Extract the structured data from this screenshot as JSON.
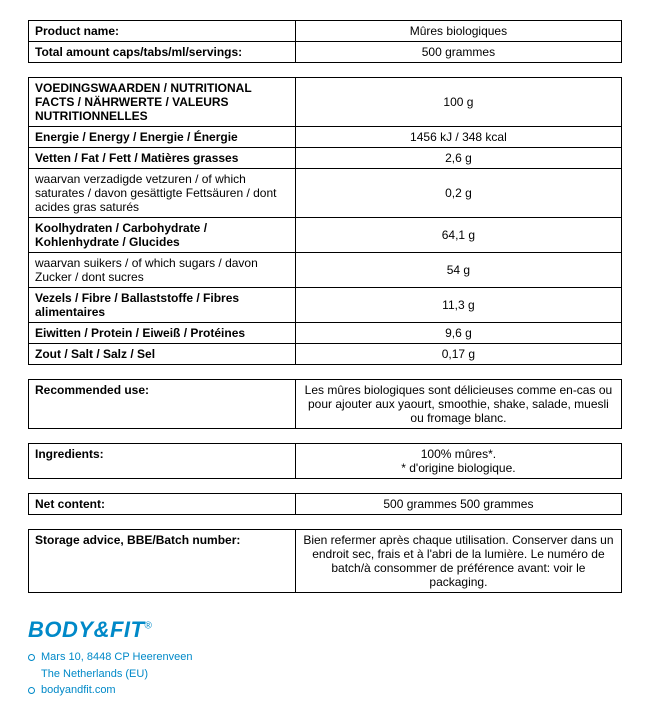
{
  "product_table": {
    "rows": [
      {
        "label": "Product name:",
        "value": "Mûres biologiques",
        "bold": true
      },
      {
        "label": "Total amount caps/tabs/ml/servings:",
        "value": "500 grammes",
        "bold": true
      }
    ]
  },
  "nutrition_table": {
    "rows": [
      {
        "label": "VOEDINGSWAARDEN / NUTRITIONAL FACTS / NÄHRWERTE / VALEURS NUTRITIONNELLES",
        "value": "100 g",
        "bold": true
      },
      {
        "label": "Energie / Energy / Energie / Énergie",
        "value": "1456 kJ / 348 kcal",
        "bold": true
      },
      {
        "label": "Vetten / Fat / Fett / Matières grasses",
        "value": "2,6 g",
        "bold": true
      },
      {
        "label": "waarvan verzadigde vetzuren / of which saturates / davon gesättigte Fettsäuren / dont acides gras saturés",
        "value": "0,2 g",
        "bold": false
      },
      {
        "label": "Koolhydraten / Carbohydrate / Kohlenhydrate / Glucides",
        "value": "64,1 g",
        "bold": true
      },
      {
        "label": "waarvan suikers / of which sugars / davon Zucker / dont sucres",
        "value": "54 g",
        "bold": false
      },
      {
        "label": "Vezels / Fibre / Ballaststoffe / Fibres alimentaires",
        "value": "11,3 g",
        "bold": true
      },
      {
        "label": "Eiwitten / Protein / Eiweiß / Protéines",
        "value": "9,6 g",
        "bold": true
      },
      {
        "label": "Zout / Salt / Salz / Sel",
        "value": "0,17 g",
        "bold": true
      }
    ]
  },
  "recommended_use": {
    "label": "Recommended use:",
    "value": "Les mûres biologiques sont délicieuses comme en-cas ou pour ajouter aux yaourt, smoothie, shake, salade, muesli ou fromage blanc."
  },
  "ingredients": {
    "label": "Ingredients:",
    "value": "100% mûres*.\n* d'origine biologique."
  },
  "net_content": {
    "label": "Net content:",
    "value": "500 grammes 500 grammes"
  },
  "storage": {
    "label": "Storage advice, BBE/Batch number:",
    "value": "Bien refermer après chaque utilisation. Conserver dans un endroit sec, frais et à l'abri de la lumière. Le numéro de batch/à consommer de préférence avant: voir le packaging."
  },
  "footer": {
    "logo_text_1": "BODY",
    "logo_amp": "&",
    "logo_text_2": "FIT",
    "address_line_1": "Mars 10, 8448 CP   Heerenveen",
    "address_line_2": "The Netherlands (EU)",
    "website": "bodyandfit.com"
  }
}
